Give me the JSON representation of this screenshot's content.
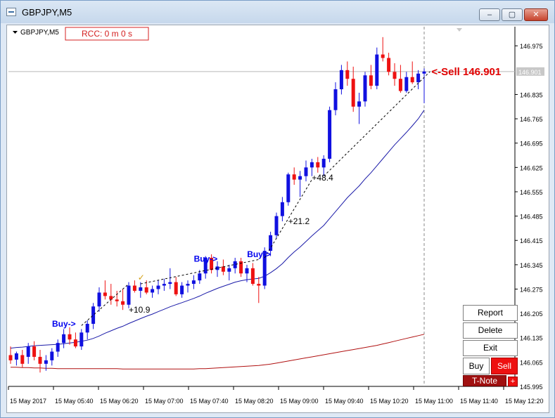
{
  "window": {
    "title": "GBPJPY,M5",
    "controls": [
      "minimize",
      "maximize",
      "close"
    ]
  },
  "chart_header": {
    "symbol_label": "GBPJPY,M5",
    "rcc_label": "RCC: 0 m 0 s"
  },
  "trade_panel": {
    "report": "Report",
    "delete": "Delete",
    "exit": "Exit",
    "buy": "Buy",
    "sell": "Sell",
    "tnote": "T-Note",
    "plus": "+"
  },
  "colors": {
    "bull": "#1010e0",
    "bear": "#ee1111",
    "ma_fast": "#1a1aa8",
    "ma_slow": "#b01010",
    "sell_text": "#e00000",
    "buy_text": "#0000ee"
  },
  "chart_data": {
    "type": "candlestick",
    "symbol": "GBPJPY",
    "timeframe": "M5",
    "ylim": [
      145.995,
      147.03
    ],
    "y_ticks": [
      145.995,
      146.065,
      146.135,
      146.205,
      146.275,
      146.345,
      146.415,
      146.485,
      146.555,
      146.625,
      146.695,
      146.765,
      146.835,
      146.901,
      146.975
    ],
    "x_ticks": [
      "15 May 2017",
      "15 May 05:40",
      "15 May 06:20",
      "15 May 07:00",
      "15 May 07:40",
      "15 May 08:20",
      "15 May 09:00",
      "15 May 09:40",
      "15 May 10:20",
      "15 May 11:00",
      "15 May 11:40",
      "15 May 12:20"
    ],
    "current_price": 146.901,
    "candles": [
      {
        "o": 146.085,
        "h": 146.11,
        "l": 146.06,
        "c": 146.07
      },
      {
        "o": 146.072,
        "h": 146.095,
        "l": 146.055,
        "c": 146.09
      },
      {
        "o": 146.085,
        "h": 146.1,
        "l": 146.05,
        "c": 146.06
      },
      {
        "o": 146.08,
        "h": 146.12,
        "l": 146.06,
        "c": 146.11
      },
      {
        "o": 146.11,
        "h": 146.125,
        "l": 146.07,
        "c": 146.08
      },
      {
        "o": 146.08,
        "h": 146.1,
        "l": 146.035,
        "c": 146.06
      },
      {
        "o": 146.06,
        "h": 146.085,
        "l": 146.04,
        "c": 146.07
      },
      {
        "o": 146.07,
        "h": 146.105,
        "l": 146.055,
        "c": 146.095
      },
      {
        "o": 146.095,
        "h": 146.13,
        "l": 146.08,
        "c": 146.12
      },
      {
        "o": 146.12,
        "h": 146.16,
        "l": 146.105,
        "c": 146.145
      },
      {
        "o": 146.145,
        "h": 146.165,
        "l": 146.115,
        "c": 146.13
      },
      {
        "o": 146.13,
        "h": 146.15,
        "l": 146.105,
        "c": 146.11
      },
      {
        "o": 146.11,
        "h": 146.16,
        "l": 146.1,
        "c": 146.15
      },
      {
        "o": 146.15,
        "h": 146.185,
        "l": 146.13,
        "c": 146.175
      },
      {
        "o": 146.175,
        "h": 146.235,
        "l": 146.16,
        "c": 146.225
      },
      {
        "o": 146.225,
        "h": 146.28,
        "l": 146.21,
        "c": 146.265
      },
      {
        "o": 146.265,
        "h": 146.3,
        "l": 146.245,
        "c": 146.255
      },
      {
        "o": 146.255,
        "h": 146.29,
        "l": 146.23,
        "c": 146.245
      },
      {
        "o": 146.245,
        "h": 146.27,
        "l": 146.225,
        "c": 146.24
      },
      {
        "o": 146.24,
        "h": 146.275,
        "l": 146.215,
        "c": 146.23
      },
      {
        "o": 146.23,
        "h": 146.295,
        "l": 146.22,
        "c": 146.285
      },
      {
        "o": 146.285,
        "h": 146.3,
        "l": 146.265,
        "c": 146.27
      },
      {
        "o": 146.27,
        "h": 146.295,
        "l": 146.25,
        "c": 146.28
      },
      {
        "o": 146.28,
        "h": 146.3,
        "l": 146.26,
        "c": 146.265
      },
      {
        "o": 146.265,
        "h": 146.285,
        "l": 146.25,
        "c": 146.275
      },
      {
        "o": 146.275,
        "h": 146.3,
        "l": 146.26,
        "c": 146.285
      },
      {
        "o": 146.285,
        "h": 146.305,
        "l": 146.27,
        "c": 146.29
      },
      {
        "o": 146.29,
        "h": 146.335,
        "l": 146.275,
        "c": 146.295
      },
      {
        "o": 146.295,
        "h": 146.31,
        "l": 146.255,
        "c": 146.26
      },
      {
        "o": 146.26,
        "h": 146.295,
        "l": 146.25,
        "c": 146.285
      },
      {
        "o": 146.285,
        "h": 146.3,
        "l": 146.265,
        "c": 146.29
      },
      {
        "o": 146.29,
        "h": 146.315,
        "l": 146.275,
        "c": 146.3
      },
      {
        "o": 146.3,
        "h": 146.33,
        "l": 146.29,
        "c": 146.32
      },
      {
        "o": 146.32,
        "h": 146.37,
        "l": 146.305,
        "c": 146.365
      },
      {
        "o": 146.365,
        "h": 146.375,
        "l": 146.32,
        "c": 146.33
      },
      {
        "o": 146.33,
        "h": 146.355,
        "l": 146.31,
        "c": 146.34
      },
      {
        "o": 146.34,
        "h": 146.36,
        "l": 146.315,
        "c": 146.325
      },
      {
        "o": 146.325,
        "h": 146.345,
        "l": 146.3,
        "c": 146.335
      },
      {
        "o": 146.335,
        "h": 146.365,
        "l": 146.32,
        "c": 146.355
      },
      {
        "o": 146.355,
        "h": 146.365,
        "l": 146.31,
        "c": 146.32
      },
      {
        "o": 146.32,
        "h": 146.345,
        "l": 146.295,
        "c": 146.335
      },
      {
        "o": 146.335,
        "h": 146.35,
        "l": 146.285,
        "c": 146.29
      },
      {
        "o": 146.29,
        "h": 146.31,
        "l": 146.235,
        "c": 146.285
      },
      {
        "o": 146.285,
        "h": 146.395,
        "l": 146.275,
        "c": 146.385
      },
      {
        "o": 146.385,
        "h": 146.44,
        "l": 146.37,
        "c": 146.43
      },
      {
        "o": 146.43,
        "h": 146.495,
        "l": 146.42,
        "c": 146.485
      },
      {
        "o": 146.485,
        "h": 146.54,
        "l": 146.47,
        "c": 146.525
      },
      {
        "o": 146.525,
        "h": 146.61,
        "l": 146.515,
        "c": 146.605
      },
      {
        "o": 146.605,
        "h": 146.625,
        "l": 146.575,
        "c": 146.59
      },
      {
        "o": 146.59,
        "h": 146.615,
        "l": 146.54,
        "c": 146.6
      },
      {
        "o": 146.6,
        "h": 146.645,
        "l": 146.585,
        "c": 146.625
      },
      {
        "o": 146.625,
        "h": 146.65,
        "l": 146.6,
        "c": 146.64
      },
      {
        "o": 146.64,
        "h": 146.655,
        "l": 146.61,
        "c": 146.625
      },
      {
        "o": 146.625,
        "h": 146.66,
        "l": 146.6,
        "c": 146.65
      },
      {
        "o": 146.65,
        "h": 146.8,
        "l": 146.64,
        "c": 146.79
      },
      {
        "o": 146.79,
        "h": 146.87,
        "l": 146.775,
        "c": 146.85
      },
      {
        "o": 146.85,
        "h": 146.92,
        "l": 146.835,
        "c": 146.905
      },
      {
        "o": 146.905,
        "h": 146.93,
        "l": 146.86,
        "c": 146.88
      },
      {
        "o": 146.88,
        "h": 146.915,
        "l": 146.785,
        "c": 146.8
      },
      {
        "o": 146.8,
        "h": 146.84,
        "l": 146.75,
        "c": 146.815
      },
      {
        "o": 146.815,
        "h": 146.9,
        "l": 146.8,
        "c": 146.89
      },
      {
        "o": 146.89,
        "h": 146.92,
        "l": 146.85,
        "c": 146.86
      },
      {
        "o": 146.86,
        "h": 146.97,
        "l": 146.85,
        "c": 146.95
      },
      {
        "o": 146.95,
        "h": 147.0,
        "l": 146.93,
        "c": 146.94
      },
      {
        "o": 146.94,
        "h": 146.955,
        "l": 146.89,
        "c": 146.9
      },
      {
        "o": 146.9,
        "h": 146.925,
        "l": 146.86,
        "c": 146.88
      },
      {
        "o": 146.88,
        "h": 146.92,
        "l": 146.84,
        "c": 146.845
      },
      {
        "o": 146.845,
        "h": 146.9,
        "l": 146.84,
        "c": 146.885
      },
      {
        "o": 146.885,
        "h": 146.93,
        "l": 146.865,
        "c": 146.87
      },
      {
        "o": 146.87,
        "h": 146.905,
        "l": 146.85,
        "c": 146.895
      },
      {
        "o": 146.895,
        "h": 146.91,
        "l": 146.81,
        "c": 146.901
      }
    ],
    "ma_fast": [
      146.105,
      146.107,
      146.108,
      146.11,
      146.112,
      146.113,
      146.114,
      146.115,
      146.116,
      146.118,
      146.12,
      146.122,
      146.125,
      146.128,
      146.133,
      146.14,
      146.148,
      146.155,
      146.162,
      146.168,
      146.176,
      146.183,
      146.19,
      146.197,
      146.203,
      146.21,
      146.217,
      146.224,
      146.23,
      146.236,
      146.242,
      146.248,
      146.255,
      146.263,
      146.27,
      146.277,
      146.283,
      146.289,
      146.295,
      146.299,
      146.302,
      146.304,
      146.306,
      146.312,
      146.322,
      146.334,
      146.348,
      146.366,
      146.382,
      146.396,
      146.412,
      146.428,
      146.443,
      146.458,
      146.478,
      146.498,
      146.518,
      146.538,
      146.555,
      146.572,
      146.592,
      146.61,
      146.63,
      146.65,
      146.67,
      146.69,
      146.708,
      146.726,
      146.745,
      146.765,
      146.79
    ],
    "ma_slow": [
      146.05,
      146.05,
      146.049,
      146.049,
      146.048,
      146.048,
      146.047,
      146.047,
      146.046,
      146.046,
      146.046,
      146.046,
      146.046,
      146.046,
      146.046,
      146.046,
      146.046,
      146.046,
      146.046,
      146.045,
      146.045,
      146.045,
      146.045,
      146.045,
      146.045,
      146.045,
      146.045,
      146.045,
      146.045,
      146.045,
      146.045,
      146.045,
      146.046,
      146.046,
      146.047,
      146.048,
      146.049,
      146.05,
      146.051,
      146.052,
      146.053,
      146.054,
      146.055,
      146.057,
      146.059,
      146.062,
      146.065,
      146.068,
      146.071,
      146.074,
      146.077,
      146.08,
      146.083,
      146.086,
      146.089,
      146.092,
      146.095,
      146.098,
      146.101,
      146.104,
      146.107,
      146.11,
      146.113,
      146.117,
      146.121,
      146.125,
      146.129,
      146.133,
      146.137,
      146.141,
      146.145
    ],
    "annotations": [
      {
        "text": "Buy->",
        "x_index": 10,
        "y": 146.175,
        "color": "blue"
      },
      {
        "text": "Buy->",
        "x_index": 34,
        "y": 146.362,
        "color": "blue"
      },
      {
        "text": "Buy->",
        "x_index": 43,
        "y": 146.375,
        "color": "blue"
      },
      {
        "text": "+10.9",
        "x_index": 20,
        "y": 146.215
      },
      {
        "text": "+21.2",
        "x_index": 47,
        "y": 146.47
      },
      {
        "text": "+48.4",
        "x_index": 51,
        "y": 146.595
      },
      {
        "text": "<-Sell 146.901",
        "x_index": 71,
        "y": 146.901,
        "color": "red"
      }
    ],
    "trade_lines": [
      {
        "from": [
          12,
          146.17
        ],
        "to": [
          20,
          146.29
        ]
      },
      {
        "from": [
          22,
          146.29
        ],
        "to": [
          42,
          146.36
        ]
      },
      {
        "from": [
          43,
          146.365
        ],
        "to": [
          51,
          146.59
        ]
      },
      {
        "from": [
          53,
          146.6
        ],
        "to": [
          71,
          146.901
        ]
      }
    ]
  }
}
